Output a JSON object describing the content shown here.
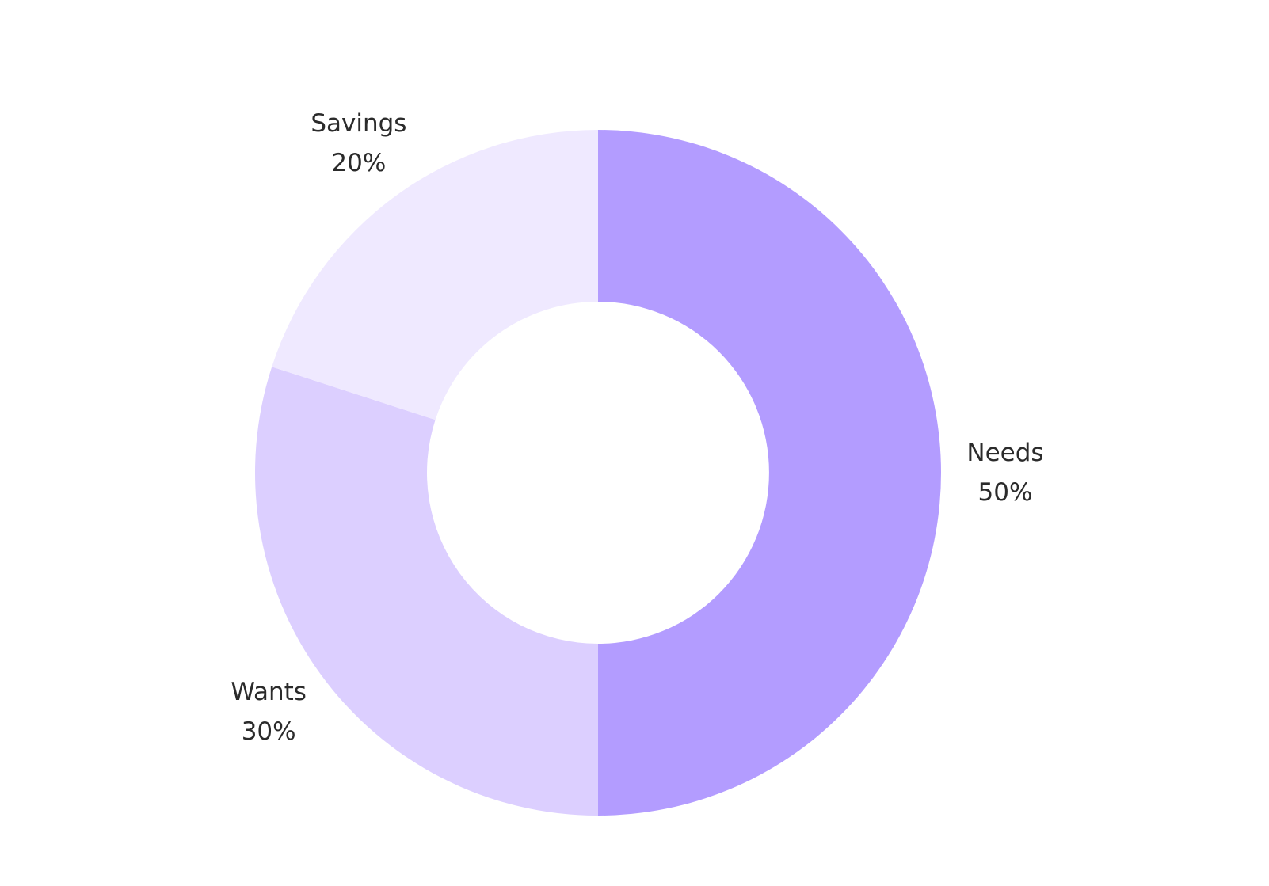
{
  "chart_data": {
    "type": "pie",
    "variant": "donut",
    "title": "",
    "slices": [
      {
        "label": "Needs",
        "value": 50,
        "value_label": "50%",
        "color": "#b39cff"
      },
      {
        "label": "Wants",
        "value": 30,
        "value_label": "30%",
        "color": "#dccfff"
      },
      {
        "label": "Savings",
        "value": 20,
        "value_label": "20%",
        "color": "#efe9ff"
      }
    ],
    "start_angle": "top",
    "direction": "clockwise",
    "legend": "none"
  }
}
